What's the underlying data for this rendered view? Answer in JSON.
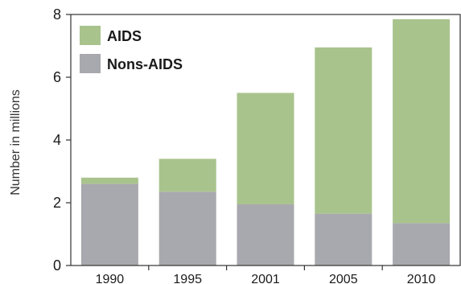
{
  "chart_data": {
    "type": "bar",
    "stacked": true,
    "title": "",
    "xlabel": "",
    "ylabel": "Number in millions",
    "ylim": [
      0,
      8
    ],
    "yticks": [
      "0",
      "2",
      "4",
      "6",
      "8"
    ],
    "categories": [
      "1990",
      "1995",
      "2001",
      "2005",
      "2010"
    ],
    "series": [
      {
        "name": "Nons-AIDS",
        "color": "#a8a9ae",
        "values": [
          2.6,
          2.35,
          1.95,
          1.65,
          1.35
        ]
      },
      {
        "name": "AIDS",
        "color": "#a9c38d",
        "values": [
          0.2,
          1.05,
          3.55,
          5.3,
          6.5
        ]
      }
    ],
    "legend": {
      "placement": "top-left",
      "entries": [
        {
          "label": "AIDS",
          "color": "#a9c38d"
        },
        {
          "label": "Nons-AIDS",
          "color": "#a8a9ae"
        }
      ]
    },
    "grid": false
  }
}
